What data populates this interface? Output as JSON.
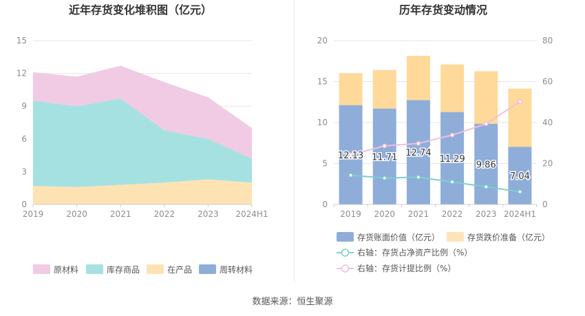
{
  "footer": {
    "source": "数据来源：恒生聚源"
  },
  "chart_data": [
    {
      "type": "area",
      "title": "近年存货变化堆积图（亿元）",
      "categories": [
        "2019",
        "2020",
        "2021",
        "2022",
        "2023",
        "2024H1"
      ],
      "ylim": [
        0,
        15
      ],
      "yticks": [
        "0",
        "3",
        "6",
        "9",
        "12",
        "15"
      ],
      "stacked": true,
      "grid": true,
      "legend_position": "bottom",
      "series": [
        {
          "name": "周转材料",
          "color": "#8fadd9",
          "values": [
            0,
            0,
            0,
            0,
            0,
            0
          ]
        },
        {
          "name": "在产品",
          "color": "#fde3b3",
          "values": [
            1.7,
            1.6,
            1.8,
            2.0,
            2.3,
            2.0
          ]
        },
        {
          "name": "库存商品",
          "color": "#a6e1e1",
          "values": [
            7.8,
            7.4,
            7.9,
            4.8,
            3.7,
            2.2
          ]
        },
        {
          "name": "原材料",
          "color": "#f0cbe3",
          "values": [
            2.6,
            2.7,
            3.0,
            4.4,
            3.8,
            2.8
          ]
        }
      ],
      "legend_order": [
        "原材料",
        "库存商品",
        "在产品",
        "周转材料"
      ]
    },
    {
      "type": "bar",
      "title": "历年存货变动情况",
      "categories": [
        "2019",
        "2020",
        "2021",
        "2022",
        "2023",
        "2024H1"
      ],
      "ylim": [
        0,
        20
      ],
      "yticks": [
        "0",
        "5",
        "10",
        "15",
        "20"
      ],
      "y2lim": [
        0,
        80
      ],
      "y2ticks": [
        "0",
        "20",
        "40",
        "60",
        "80"
      ],
      "grid": true,
      "legend_position": "bottom",
      "series": [
        {
          "name": "存货账面价值（亿元）",
          "axis": "left",
          "kind": "stacked-bar",
          "color": "#8fadd9",
          "values": [
            12.13,
            11.71,
            12.74,
            11.29,
            9.86,
            7.04
          ],
          "labels": [
            "12.13",
            "11.71",
            "12.74",
            "11.29",
            "9.86",
            "7.04"
          ]
        },
        {
          "name": "存货跌价准备（亿元）",
          "axis": "left",
          "kind": "stacked-bar",
          "color": "#fed99a",
          "values": [
            3.9,
            4.7,
            5.4,
            5.8,
            6.4,
            7.1
          ]
        },
        {
          "name": "右轴：存货占净资产比例（%）",
          "axis": "right",
          "kind": "line",
          "color": "#7fcfcf",
          "values": [
            14.3,
            12.9,
            13.3,
            11.0,
            8.6,
            6.2
          ]
        },
        {
          "name": "右轴：存货计提比例（%）",
          "axis": "right",
          "kind": "line",
          "color": "#efbfe0",
          "values": [
            24.2,
            28.6,
            29.8,
            33.9,
            39.4,
            50.2
          ]
        }
      ]
    }
  ]
}
